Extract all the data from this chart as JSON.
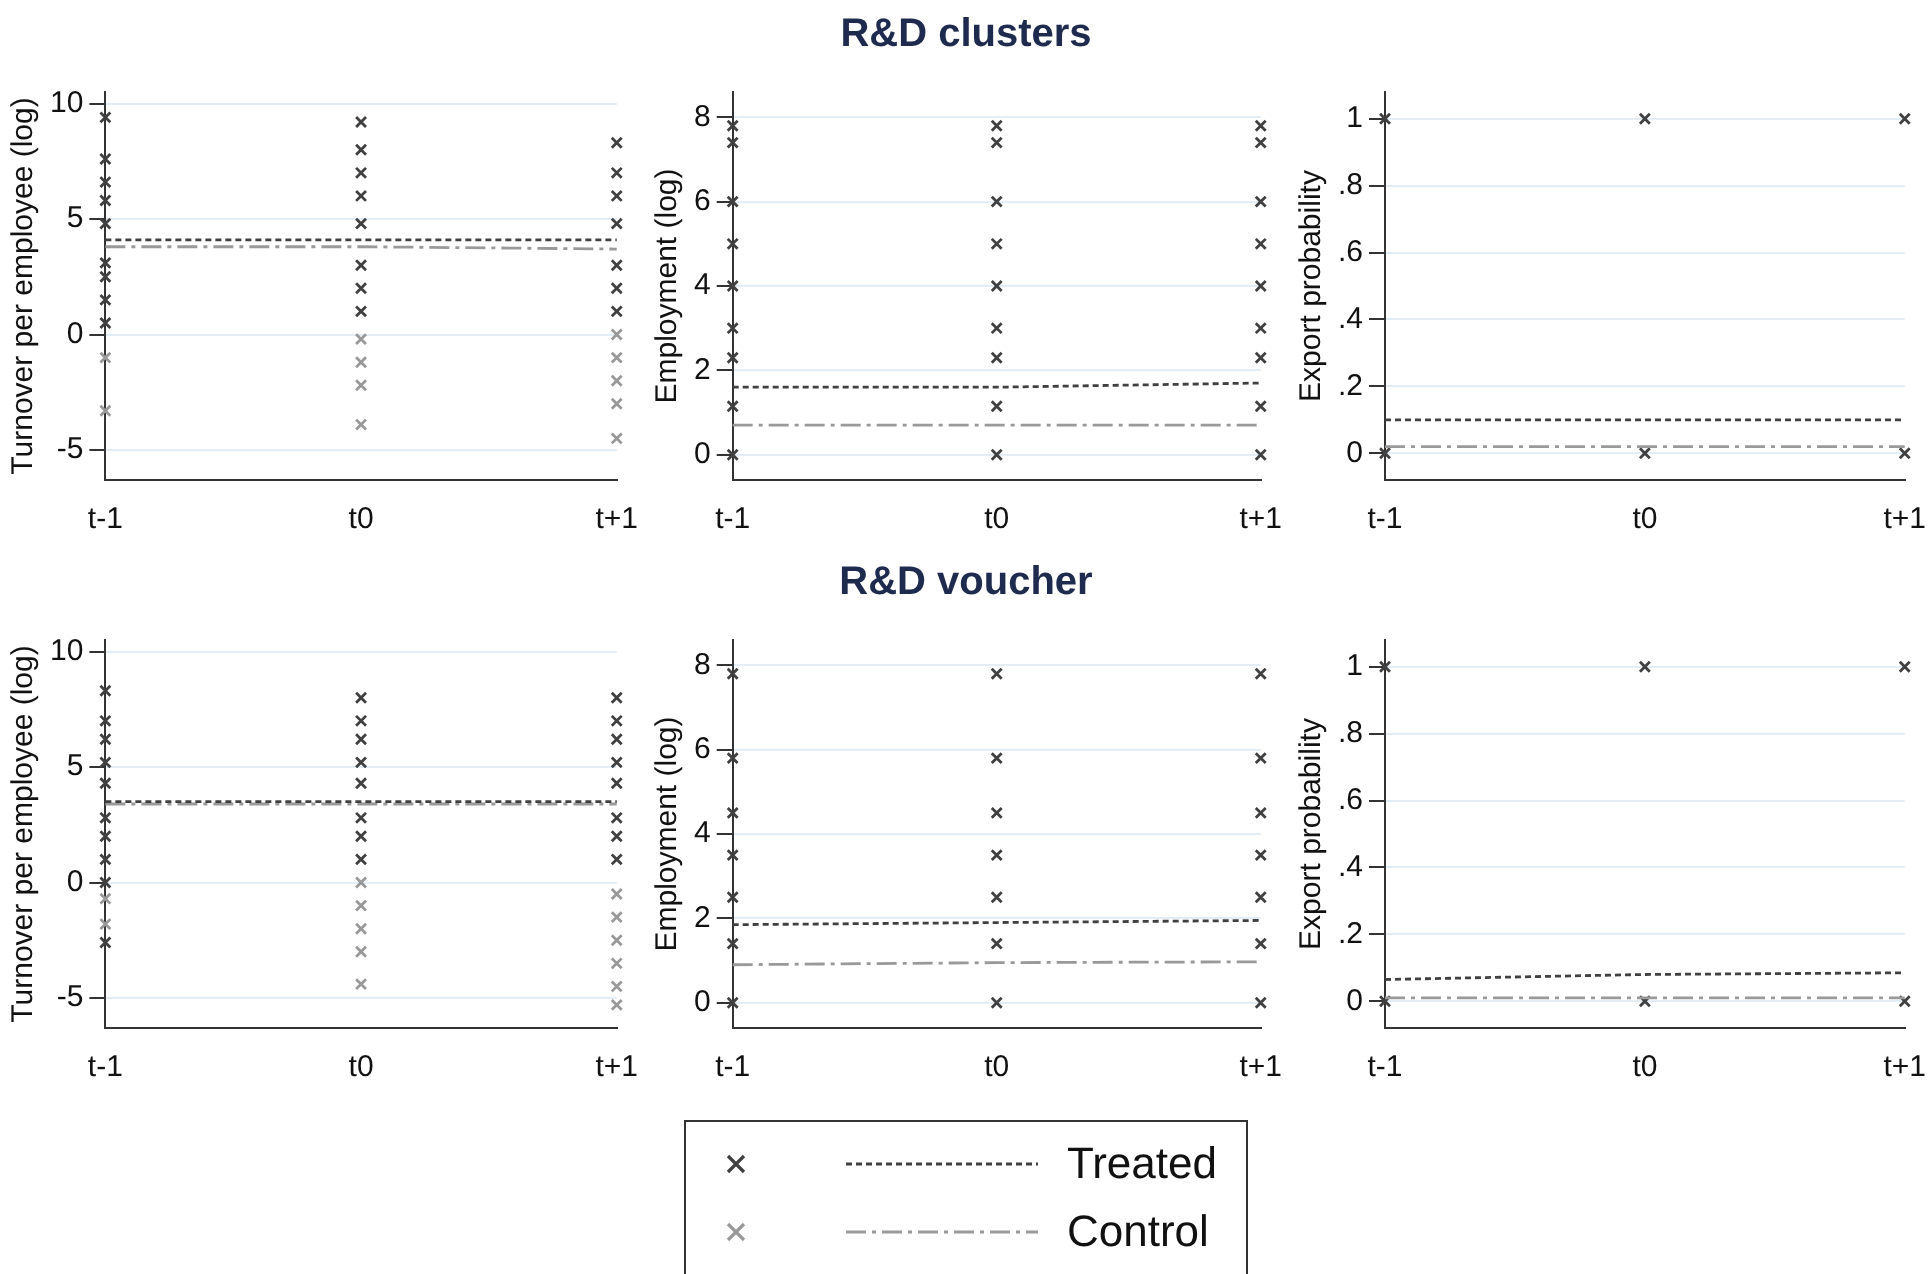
{
  "chart_data": [
    {
      "type": "scatter",
      "categories": [
        "t-1",
        "t0",
        "t+1"
      ],
      "ylabel": "Turnover per employee (log)",
      "ylim": [
        -6.3,
        10.5
      ],
      "yticks": [
        -5,
        0,
        5,
        10
      ],
      "grid": "y",
      "series": [
        {
          "marker": "cross",
          "color": "#999999",
          "x": [
            "t-1",
            "t-1",
            "t0",
            "t0",
            "t0",
            "t0",
            "t+1",
            "t+1",
            "t+1",
            "t+1",
            "t+1"
          ],
          "values": [
            -1,
            -3.3,
            -2.2,
            -1.2,
            -0.2,
            -3.9,
            -3,
            -2,
            -1,
            0,
            -4.5
          ]
        },
        {
          "marker": "cross",
          "color": "#404040",
          "x": [
            "t-1",
            "t-1",
            "t-1",
            "t-1",
            "t-1",
            "t-1",
            "t-1",
            "t-1",
            "t-1",
            "t0",
            "t0",
            "t0",
            "t0",
            "t0",
            "t0",
            "t0",
            "t0",
            "t+1",
            "t+1",
            "t+1",
            "t+1",
            "t+1",
            "t+1",
            "t+1"
          ],
          "values": [
            0.5,
            1.5,
            2.5,
            3.1,
            4.8,
            5.8,
            6.6,
            7.6,
            9.4,
            1,
            2,
            3,
            4.8,
            6,
            7,
            8,
            9.2,
            1,
            2,
            3,
            4.8,
            6,
            7,
            8.3
          ]
        },
        {
          "type": "line",
          "marker": "none",
          "line_style": "dotted",
          "color": "#404040",
          "values": [
            4.1,
            4.1,
            4.1
          ]
        },
        {
          "type": "line",
          "marker": "none",
          "line_style": "dashed",
          "color": "#999999",
          "values": [
            3.8,
            3.8,
            3.7
          ]
        }
      ]
    },
    {
      "type": "scatter",
      "title": "R&D clusters",
      "categories": [
        "t-1",
        "t0",
        "t+1"
      ],
      "ylabel": "Employment (log)",
      "ylim": [
        -0.6,
        8.6
      ],
      "yticks": [
        0,
        2,
        4,
        6,
        8
      ],
      "grid": "y",
      "series": [
        {
          "marker": "cross",
          "color": "#404040",
          "x": [
            "t-1",
            "t-1",
            "t-1",
            "t-1",
            "t-1",
            "t-1",
            "t-1",
            "t-1",
            "t-1",
            "t0",
            "t0",
            "t0",
            "t0",
            "t0",
            "t0",
            "t0",
            "t0",
            "t0",
            "t+1",
            "t+1",
            "t+1",
            "t+1",
            "t+1",
            "t+1",
            "t+1",
            "t+1",
            "t+1"
          ],
          "values": [
            0,
            1.15,
            2.3,
            3,
            4,
            5,
            6,
            7.4,
            7.8,
            0,
            1.15,
            2.3,
            3,
            4,
            5,
            6,
            7.4,
            7.8,
            0,
            1.15,
            2.3,
            3,
            4,
            5,
            6,
            7.4,
            7.8
          ]
        },
        {
          "type": "line",
          "marker": "none",
          "line_style": "dotted",
          "color": "#404040",
          "values": [
            1.6,
            1.6,
            1.7
          ]
        },
        {
          "type": "line",
          "marker": "none",
          "line_style": "dashed",
          "color": "#999999",
          "values": [
            0.7,
            0.7,
            0.7
          ]
        }
      ]
    },
    {
      "type": "scatter",
      "categories": [
        "t-1",
        "t0",
        "t+1"
      ],
      "ylabel": "Export probability",
      "ylim": [
        -0.08,
        1.08
      ],
      "yticks": [
        0,
        {
          "value": 0.2,
          "label": ".2"
        },
        {
          "value": 0.4,
          "label": ".4"
        },
        {
          "value": 0.6,
          "label": ".6"
        },
        {
          "value": 0.8,
          "label": ".8"
        },
        1
      ],
      "grid": "y",
      "series": [
        {
          "marker": "cross",
          "color": "#404040",
          "x": [
            "t-1",
            "t-1",
            "t0",
            "t0",
            "t+1",
            "t+1"
          ],
          "values": [
            0,
            1,
            0,
            1,
            0,
            1
          ]
        },
        {
          "type": "line",
          "marker": "none",
          "line_style": "dotted",
          "color": "#404040",
          "values": [
            0.1,
            0.1,
            0.1
          ]
        },
        {
          "type": "line",
          "marker": "none",
          "line_style": "dashed",
          "color": "#999999",
          "values": [
            0.02,
            0.02,
            0.02
          ]
        }
      ]
    },
    {
      "type": "scatter",
      "categories": [
        "t-1",
        "t0",
        "t+1"
      ],
      "ylabel": "Turnover per employee (log)",
      "ylim": [
        -6.3,
        10.5
      ],
      "yticks": [
        -5,
        0,
        5,
        10
      ],
      "grid": "y",
      "legend": "bottom",
      "series": [
        {
          "marker": "cross",
          "color": "#404040",
          "x": [
            "t-1",
            "t-1",
            "t-1",
            "t-1",
            "t-1",
            "t-1",
            "t-1",
            "t-1",
            "t-1",
            "t-1",
            "t0",
            "t0",
            "t0",
            "t0",
            "t0",
            "t0",
            "t0",
            "t0",
            "t+1",
            "t+1",
            "t+1",
            "t+1",
            "t+1",
            "t+1",
            "t+1",
            "t+1"
          ],
          "values": [
            0,
            1,
            2,
            2.8,
            4.3,
            5.2,
            6.2,
            7,
            8.3,
            -2.6,
            1,
            2,
            2.8,
            4.3,
            5.2,
            6.2,
            7,
            8,
            1,
            2,
            2.8,
            4.3,
            5.2,
            6.2,
            7,
            8
          ]
        },
        {
          "marker": "cross",
          "color": "#999999",
          "x": [
            "t-1",
            "t-1",
            "t0",
            "t0",
            "t0",
            "t0",
            "t0",
            "t+1",
            "t+1",
            "t+1",
            "t+1",
            "t+1",
            "t+1"
          ],
          "values": [
            -0.7,
            -1.8,
            -3,
            -2,
            -1,
            0,
            -4.4,
            -3.5,
            -2.5,
            -1.5,
            -0.5,
            -4.5,
            -5.3
          ]
        },
        {
          "type": "line",
          "name": "Treated",
          "marker": "none",
          "line_style": "dotted",
          "color": "#404040",
          "values": [
            3.5,
            3.5,
            3.5
          ]
        },
        {
          "type": "line",
          "name": "Control",
          "marker": "none",
          "line_style": "dashed",
          "color": "#999999",
          "values": [
            3.4,
            3.4,
            3.4
          ]
        }
      ]
    },
    {
      "type": "scatter",
      "title": "R&D voucher",
      "categories": [
        "t-1",
        "t0",
        "t+1"
      ],
      "ylabel": "Employment (log)",
      "ylim": [
        -0.6,
        8.6
      ],
      "yticks": [
        0,
        2,
        4,
        6,
        8
      ],
      "grid": "y",
      "series": [
        {
          "marker": "cross",
          "color": "#404040",
          "x": [
            "t-1",
            "t-1",
            "t-1",
            "t-1",
            "t-1",
            "t-1",
            "t-1",
            "t0",
            "t0",
            "t0",
            "t0",
            "t0",
            "t0",
            "t0",
            "t+1",
            "t+1",
            "t+1",
            "t+1",
            "t+1",
            "t+1",
            "t+1"
          ],
          "values": [
            0,
            1.4,
            2.5,
            3.5,
            4.5,
            5.8,
            7.8,
            0,
            1.4,
            2.5,
            3.5,
            4.5,
            5.8,
            7.8,
            0,
            1.4,
            2.5,
            3.5,
            4.5,
            5.8,
            7.8
          ]
        },
        {
          "type": "line",
          "marker": "none",
          "line_style": "dotted",
          "color": "#404040",
          "values": [
            1.85,
            1.9,
            1.95
          ]
        },
        {
          "type": "line",
          "marker": "none",
          "line_style": "dashed",
          "color": "#999999",
          "values": [
            0.9,
            0.95,
            0.97
          ]
        }
      ]
    },
    {
      "type": "scatter",
      "categories": [
        "t-1",
        "t0",
        "t+1"
      ],
      "ylabel": "Export probability",
      "ylim": [
        -0.08,
        1.08
      ],
      "yticks": [
        0,
        {
          "value": 0.2,
          "label": ".2"
        },
        {
          "value": 0.4,
          "label": ".4"
        },
        {
          "value": 0.6,
          "label": ".6"
        },
        {
          "value": 0.8,
          "label": ".8"
        },
        1
      ],
      "grid": "y",
      "series": [
        {
          "marker": "cross",
          "color": "#404040",
          "x": [
            "t-1",
            "t-1",
            "t0",
            "t0",
            "t+1",
            "t+1"
          ],
          "values": [
            0,
            1,
            0,
            1,
            0,
            1
          ]
        },
        {
          "type": "line",
          "marker": "none",
          "line_style": "dotted",
          "color": "#404040",
          "values": [
            0.065,
            0.08,
            0.085
          ]
        },
        {
          "type": "line",
          "marker": "none",
          "line_style": "dashed",
          "color": "#999999",
          "values": [
            0.01,
            0.01,
            0.01
          ]
        }
      ]
    }
  ]
}
